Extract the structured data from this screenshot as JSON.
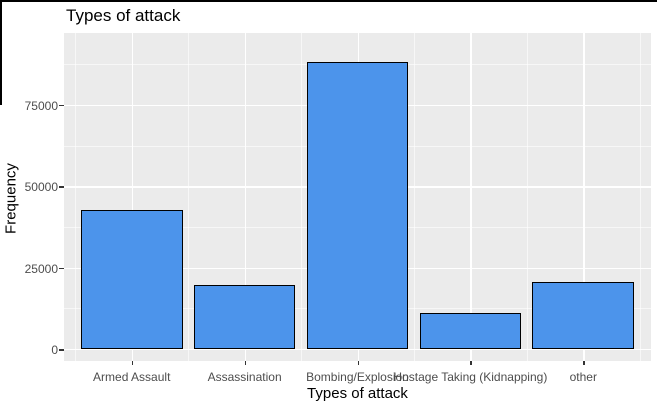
{
  "window": {
    "border_color": "#000000"
  },
  "chart_data": {
    "type": "bar",
    "title": "Types of attack",
    "xlabel": "Types of attack",
    "ylabel": "Frequency",
    "categories": [
      "Armed Assault",
      "Assassination",
      "Bombing/Explosion",
      "Hostage Taking (Kidnapping)",
      "other"
    ],
    "values": [
      42700,
      19600,
      88300,
      11100,
      20500
    ],
    "yticks": [
      0,
      25000,
      50000,
      75000
    ],
    "ytick_labels": [
      "0",
      "25000",
      "50000",
      "75000"
    ],
    "y_minor_ticks": [
      12500,
      37500,
      62500,
      87500
    ],
    "ylim": [
      0,
      92500
    ],
    "grid": true,
    "legend": false,
    "colors": {
      "bar_fill": "#4C94EB",
      "bar_stroke": "#000000",
      "panel_bg": "#EBEBEB",
      "grid_major": "#FFFFFF",
      "grid_minor": "#FFFFFF",
      "axis_text": "#4D4D4D",
      "tick_mark": "#333333",
      "title_color": "#000000"
    }
  }
}
